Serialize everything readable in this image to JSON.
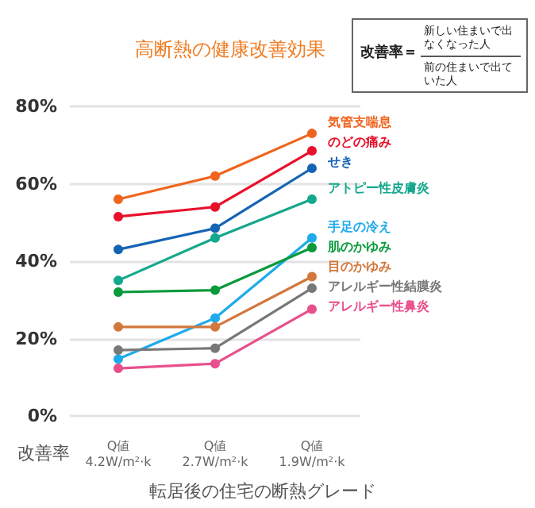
{
  "chart_data": {
    "type": "line",
    "title": "高断熱の健康改善効果",
    "xlabel": "転居後の住宅の断熱グレード",
    "ylabel": "改善率",
    "annotations": [
      "改善率＝",
      "新しい住まいで出なくなった人",
      "前の住まいで出ていた人"
    ],
    "categories": [
      "Q値\n4.2W/m²·k",
      "Q値\n2.7W/m²·k",
      "Q値\n1.9W/m²·k"
    ],
    "series": [
      {
        "name": "気管支喘息",
        "color": "#f0641e",
        "values": [
          56,
          62,
          73
        ]
      },
      {
        "name": "のどの痛み",
        "color": "#e8102a",
        "values": [
          51.5,
          54,
          68.5
        ]
      },
      {
        "name": "せき",
        "color": "#1464b4",
        "values": [
          43,
          48.5,
          64
        ]
      },
      {
        "name": "アトピー性皮膚炎",
        "color": "#14a88c",
        "values": [
          35,
          46,
          56
        ]
      },
      {
        "name": "手足の冷え",
        "color": "#1eaaeb",
        "values": [
          14.7,
          25.3,
          46
        ]
      },
      {
        "name": "肌のかゆみ",
        "color": "#0a9a3c",
        "values": [
          32,
          32.5,
          43.5
        ]
      },
      {
        "name": "目のかゆみ",
        "color": "#d2783c",
        "values": [
          23,
          23,
          36
        ]
      },
      {
        "name": "アレルギー性結膜炎",
        "color": "#787878",
        "values": [
          17,
          17.5,
          33
        ]
      },
      {
        "name": "アレルギー性鼻炎",
        "color": "#e8508c",
        "values": [
          12.3,
          13.5,
          27.6
        ]
      }
    ],
    "ylim": [
      0,
      80
    ],
    "yticks": [
      {
        "value": 0,
        "label": "0%"
      },
      {
        "value": 20,
        "label": "20%"
      },
      {
        "value": 40,
        "label": "40%"
      },
      {
        "value": 60,
        "label": "60%"
      },
      {
        "value": 80,
        "label": "80%"
      }
    ],
    "grid": "y",
    "marker": "circle",
    "line_style": "solid",
    "legend": false
  }
}
